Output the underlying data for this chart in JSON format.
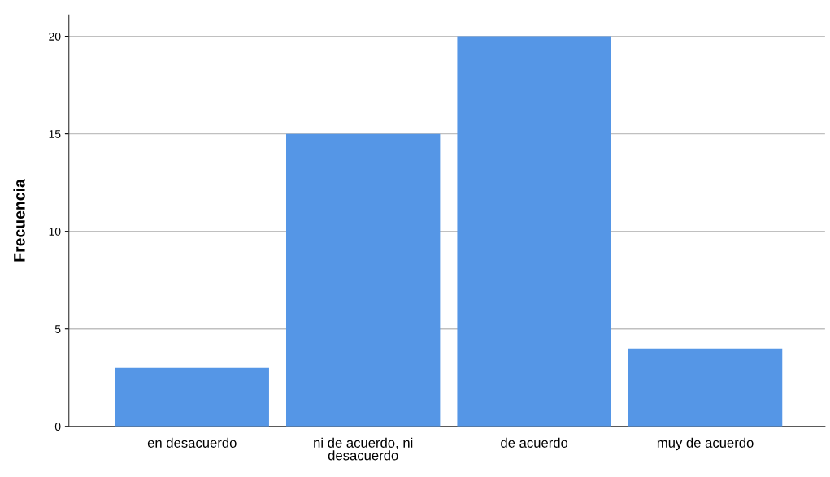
{
  "chart_data": {
    "type": "bar",
    "ylabel": "Frecuencia",
    "categories": [
      "en desacuerdo",
      "ni de acuerdo, ni\ndesacuerdo",
      "de acuerdo",
      "muy de acuerdo"
    ],
    "values": [
      3,
      15,
      20,
      4
    ],
    "color": "#5596e6",
    "ylim": [
      0,
      21.1
    ],
    "yticks": [
      0,
      5,
      10,
      15,
      20
    ],
    "grid": "y"
  }
}
